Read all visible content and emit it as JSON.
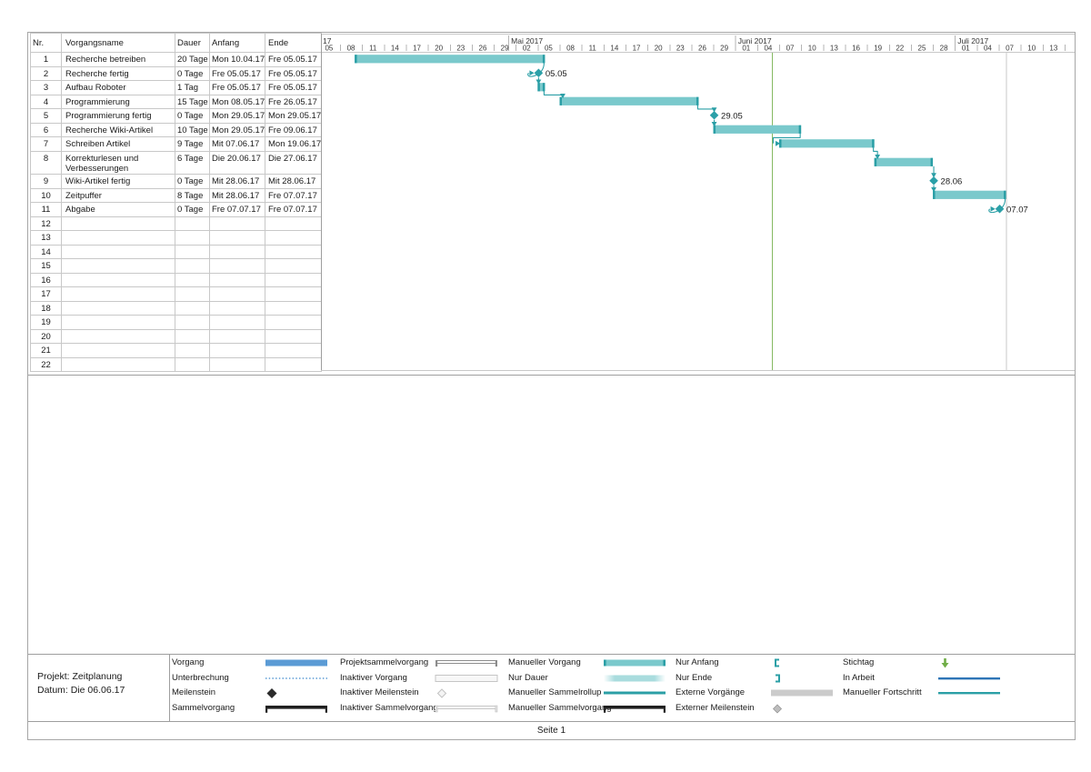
{
  "page": {
    "footer": "Seite 1"
  },
  "project_info": {
    "line1": "Projekt: Zeitplanung",
    "line2": "Datum: Die 06.06.17"
  },
  "table": {
    "columns": [
      "Nr.",
      "Vorgangsname",
      "Dauer",
      "Anfang",
      "Ende"
    ],
    "total_rows": 22
  },
  "chart_data": {
    "type": "bar",
    "variant": "gantt",
    "tasks": [
      {
        "nr": 1,
        "name": "Recherche betreiben",
        "duration": "20 Tage",
        "start_label": "Mon 10.04.17",
        "finish_label": "Fre 05.05.17",
        "milestone": false,
        "start": "2017-04-10",
        "finish": "2017-05-05"
      },
      {
        "nr": 2,
        "name": "Recherche fertig",
        "duration": "0 Tage",
        "start_label": "Fre 05.05.17",
        "finish_label": "Fre 05.05.17",
        "milestone": true,
        "date": "2017-05-05",
        "bar_label": "05.05",
        "anchor": "end"
      },
      {
        "nr": 3,
        "name": "Aufbau Roboter",
        "duration": "1 Tag",
        "start_label": "Fre 05.05.17",
        "finish_label": "Fre 05.05.17",
        "milestone": false,
        "start": "2017-05-05",
        "finish": "2017-05-05"
      },
      {
        "nr": 4,
        "name": "Programmierung",
        "duration": "15 Tage",
        "start_label": "Mon 08.05.17",
        "finish_label": "Fre 26.05.17",
        "milestone": false,
        "start": "2017-05-08",
        "finish": "2017-05-26"
      },
      {
        "nr": 5,
        "name": "Programmierung fertig",
        "duration": "0 Tage",
        "start_label": "Mon 29.05.17",
        "finish_label": "Mon 29.05.17",
        "milestone": true,
        "date": "2017-05-29",
        "bar_label": "29.05",
        "anchor": "start"
      },
      {
        "nr": 6,
        "name": "Recherche Wiki-Artikel",
        "duration": "10 Tage",
        "start_label": "Mon 29.05.17",
        "finish_label": "Fre 09.06.17",
        "milestone": false,
        "start": "2017-05-29",
        "finish": "2017-06-09"
      },
      {
        "nr": 7,
        "name": "Schreiben Artikel",
        "duration": "9 Tage",
        "start_label": "Mit 07.06.17",
        "finish_label": "Mon 19.06.17",
        "milestone": false,
        "start": "2017-06-07",
        "finish": "2017-06-19"
      },
      {
        "nr": 8,
        "name": "Korrekturlesen und Verbesserungen",
        "duration": "6 Tage",
        "start_label": "Die 20.06.17",
        "finish_label": "Die 27.06.17",
        "milestone": false,
        "start": "2017-06-20",
        "finish": "2017-06-27"
      },
      {
        "nr": 9,
        "name": "Wiki-Artikel fertig",
        "duration": "0 Tage",
        "start_label": "Mit 28.06.17",
        "finish_label": "Mit 28.06.17",
        "milestone": true,
        "date": "2017-06-28",
        "bar_label": "28.06",
        "anchor": "start"
      },
      {
        "nr": 10,
        "name": "Zeitpuffer",
        "duration": "8 Tage",
        "start_label": "Mit 28.06.17",
        "finish_label": "Fre 07.07.17",
        "milestone": false,
        "start": "2017-06-28",
        "finish": "2017-07-07"
      },
      {
        "nr": 11,
        "name": "Abgabe",
        "duration": "0 Tage",
        "start_label": "Fre 07.07.17",
        "finish_label": "Fre 07.07.17",
        "milestone": true,
        "date": "2017-07-07",
        "bar_label": "07.07",
        "anchor": "end"
      }
    ],
    "links": [
      {
        "from": 1,
        "to": 2,
        "style": "curl"
      },
      {
        "from": 2,
        "to": 3,
        "style": "down"
      },
      {
        "from": 3,
        "to": 4,
        "style": "elbow"
      },
      {
        "from": 4,
        "to": 5,
        "style": "elbow"
      },
      {
        "from": 5,
        "to": 6,
        "style": "down"
      },
      {
        "from": 6,
        "to": 7,
        "style": "hookleft"
      },
      {
        "from": 7,
        "to": 8,
        "style": "elbow"
      },
      {
        "from": 8,
        "to": 9,
        "style": "down"
      },
      {
        "from": 9,
        "to": 10,
        "style": "down"
      },
      {
        "from": 10,
        "to": 11,
        "style": "curl"
      }
    ],
    "timeline": {
      "ticks": [
        "05",
        "08",
        "11",
        "14",
        "17",
        "20",
        "23",
        "26",
        "29",
        "02",
        "05",
        "08",
        "11",
        "14",
        "17",
        "20",
        "23",
        "26",
        "29",
        "01",
        "04",
        "07",
        "10",
        "13",
        "16",
        "19",
        "22",
        "25",
        "28",
        "01",
        "04",
        "07",
        "10",
        "13"
      ],
      "tick_interval_days": 3,
      "first_tick_date": "2017-04-05",
      "months": [
        {
          "label": "17",
          "date": null
        },
        {
          "label": "Mai 2017",
          "date": "2017-05-01"
        },
        {
          "label": "Juni 2017",
          "date": "2017-06-01"
        },
        {
          "label": "Juli 2017",
          "date": "2017-07-01"
        }
      ],
      "status_date": "2017-06-06",
      "finish_date": "2017-07-08"
    }
  },
  "legend": {
    "columns": [
      [
        {
          "label": "Vorgang",
          "swatch": "bar-blue"
        },
        {
          "label": "Unterbrechung",
          "swatch": "split-dotted"
        },
        {
          "label": "Meilenstein",
          "swatch": "milestone-black"
        },
        {
          "label": "Sammelvorgang",
          "swatch": "summary-black"
        }
      ],
      [
        {
          "label": "Projektsammelvorgang",
          "swatch": "project-summary"
        },
        {
          "label": "Inaktiver Vorgang",
          "swatch": "inactive-bar"
        },
        {
          "label": "Inaktiver Meilenstein",
          "swatch": "inactive-milestone"
        },
        {
          "label": "Inaktiver Sammelvorgang",
          "swatch": "inactive-summary"
        }
      ],
      [
        {
          "label": "Manueller Vorgang",
          "swatch": "manual-bar"
        },
        {
          "label": "Nur Dauer",
          "swatch": "duration-only"
        },
        {
          "label": "Manueller Sammelrollup",
          "swatch": "rollup-teal"
        },
        {
          "label": "Manueller Sammelvorgang",
          "swatch": "manual-summary"
        }
      ],
      [
        {
          "label": "Nur Anfang",
          "swatch": "start-only"
        },
        {
          "label": "Nur Ende",
          "swatch": "finish-only"
        },
        {
          "label": "Externe Vorgänge",
          "swatch": "external-bar"
        },
        {
          "label": "Externer Meilenstein",
          "swatch": "external-milestone"
        }
      ],
      [
        {
          "label": "Stichtag",
          "swatch": "deadline-arrow"
        },
        {
          "label": "In Arbeit",
          "swatch": "inprogress-line"
        },
        {
          "label": "Manueller Fortschritt",
          "swatch": "manual-progress-line"
        }
      ]
    ]
  },
  "colors": {
    "task_fill": "#7AC9CC",
    "task_cap": "#2B9FA6",
    "milestone": "#2BA0A8",
    "link": "#2B9FA6",
    "status_line_green": "#70AD47",
    "finish_line_gray": "#C9C9C9",
    "legend_blue": "#5B9BD5",
    "progress_blue": "#2E75B6",
    "deadline_green": "#70AD47",
    "external_gray": "#CBCBCB",
    "grid": "#C8C8C8",
    "grid_dark": "#9E9E9E",
    "text": "#1A1A1A",
    "tick_text": "#3A3A3A"
  }
}
